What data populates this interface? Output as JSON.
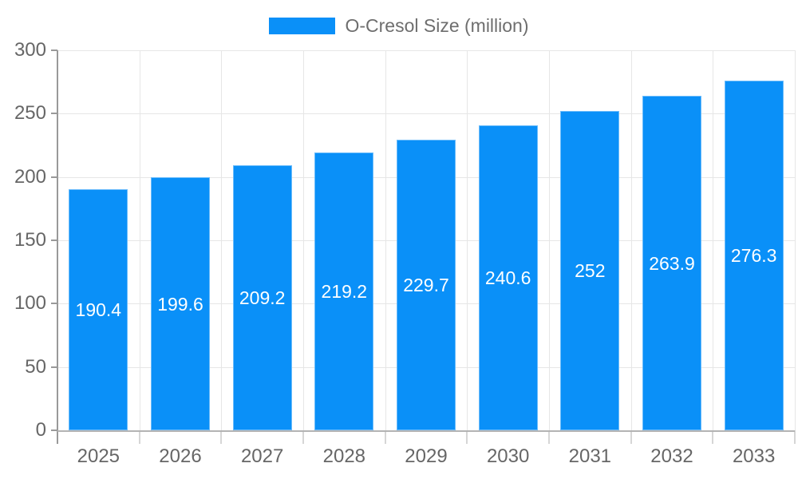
{
  "colors": {
    "bar": "#0a90f8",
    "bar_border": "rgba(255,255,255,0.40)",
    "grid": "#e6e6e6",
    "axis_line": "#999999",
    "x_tick": "#d6d6d6",
    "baseline": "#b3b3b3",
    "axis_text": "#666666",
    "legend_text": "#6e6e6e",
    "value_label_text": "#ffffff",
    "background": "#ffffff"
  },
  "legend": {
    "label": "O-Cresol Size (million)",
    "position": "top-center"
  },
  "chart_data": {
    "type": "bar",
    "title": "O-Cresol Size (million)",
    "series_name": "O-Cresol Size (million)",
    "categories": [
      "2025",
      "2026",
      "2027",
      "2028",
      "2029",
      "2030",
      "2031",
      "2032",
      "2033"
    ],
    "values": [
      190.4,
      199.6,
      209.2,
      219.2,
      229.7,
      240.6,
      252,
      263.9,
      276.3
    ],
    "xlabel": "",
    "ylabel": "",
    "ylim": [
      0,
      300
    ],
    "yticks": [
      0,
      50,
      100,
      150,
      200,
      250,
      300
    ],
    "grid": true,
    "legend_position": "top",
    "value_labels": "inside-center"
  }
}
